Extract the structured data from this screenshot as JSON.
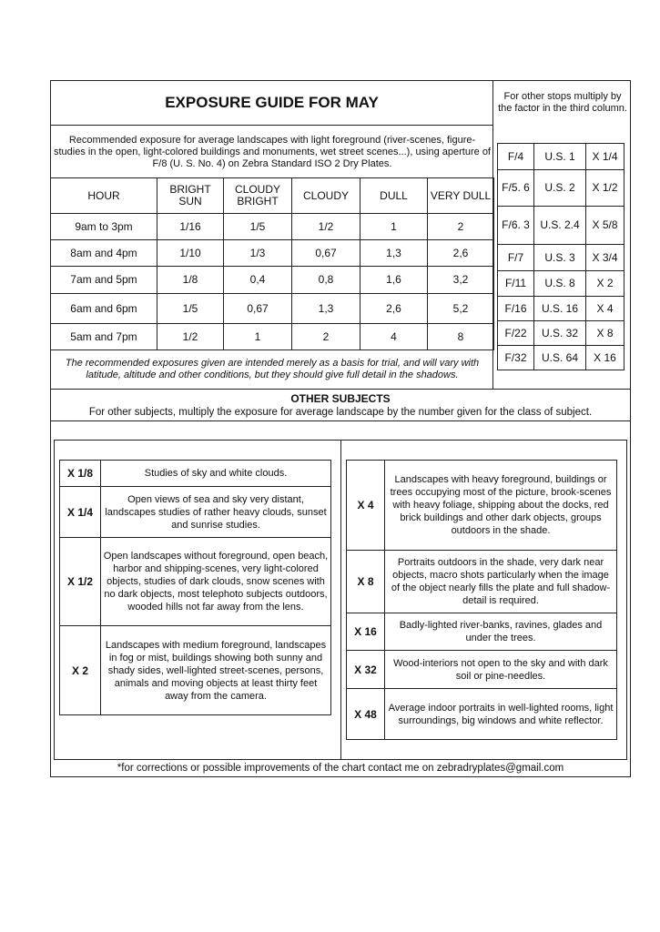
{
  "title": "EXPOSURE GUIDE FOR MAY",
  "stops_note": "For other stops multiply by the factor in the third column.",
  "intro": "Recommended exposure for average landscapes with light foreground (river-scenes, figure- studies in the open, light-colored buildings and monuments, wet street scenes...), using aperture of F/8 (U. S. No. 4) on Zebra Standard ISO 2 Dry Plates.",
  "exposure_table": {
    "headers": [
      "HOUR",
      "BRIGHT SUN",
      "CLOUDY BRIGHT",
      "CLOUDY",
      "DULL",
      "VERY DULL"
    ],
    "rows": [
      [
        "9am to 3pm",
        "1/16",
        "1/5",
        "1/2",
        "1",
        "2"
      ],
      [
        "8am and 4pm",
        "1/10",
        "1/3",
        "0,67",
        "1,3",
        "2,6"
      ],
      [
        "7am and 5pm",
        "1/8",
        "0,4",
        "0,8",
        "1,6",
        "3,2"
      ],
      [
        "6am and 6pm",
        "1/5",
        "0,67",
        "1,3",
        "2,6",
        "5,2"
      ],
      [
        "5am and 7pm",
        "1/2",
        "1",
        "2",
        "4",
        "8"
      ]
    ]
  },
  "disclaimer": "The recommended exposures given are intended merely as a basis for trial, and will vary with latitude, altitude and other conditions, but they should give full detail in the shadows.",
  "stops_table": [
    [
      "F/4",
      "U.S. 1",
      "X 1/4"
    ],
    [
      "F/5. 6",
      "U.S. 2",
      "X 1/2"
    ],
    [
      "F/6. 3",
      "U.S. 2.4",
      "X 5/8"
    ],
    [
      "F/7",
      "U.S. 3",
      "X 3/4"
    ],
    [
      "F/11",
      "U.S. 8",
      "X 2"
    ],
    [
      "F/16",
      "U.S. 16",
      "X 4"
    ],
    [
      "F/22",
      "U.S. 32",
      "X 8"
    ],
    [
      "F/32",
      "U.S. 64",
      "X 16"
    ]
  ],
  "other_subjects": {
    "heading": "OTHER SUBJECTS",
    "subtitle": "For other subjects, multiply the exposure for average landscape by the number given for the class of subject.",
    "left": [
      [
        "X 1/8",
        "Studies of sky and white clouds."
      ],
      [
        "X 1/4",
        "Open views of sea and sky very distant, landscapes studies of rather heavy clouds, sunset and sunrise studies."
      ],
      [
        "X 1/2",
        "Open landscapes without foreground, open beach, harbor and shipping-scenes, very light-colored objects, studies of dark clouds, snow scenes with no dark objects, most telephoto subjects outdoors, wooded hills not far away from the lens."
      ],
      [
        "X 2",
        "Landscapes with medium foreground, landscapes in fog or mist, buildings showing both sunny and shady sides, well-lighted street-scenes, persons, animals and moving objects at least thirty feet away from the camera."
      ]
    ],
    "right": [
      [
        "X 4",
        "Landscapes with heavy foreground, buildings or trees occupying most of the picture, brook-scenes with heavy foliage, shipping about the docks, red brick buildings and other dark objects, groups outdoors in the shade."
      ],
      [
        "X 8",
        "Portraits outdoors in the shade, very dark near objects, macro shots particularly when the image of the object nearly fills the plate and full shadow-detail is required."
      ],
      [
        "X 16",
        "Badly-lighted river-banks, ravines, glades and under the trees."
      ],
      [
        "X 32",
        "Wood-interiors not open to the sky and with dark soil or pine-needles."
      ],
      [
        "X 48",
        "Average indoor portraits in well-lighted rooms, light surroundings, big windows and white reflector."
      ]
    ]
  },
  "footer": "*for corrections or possible improvements of the chart contact me on zebradryplates@gmail.com"
}
